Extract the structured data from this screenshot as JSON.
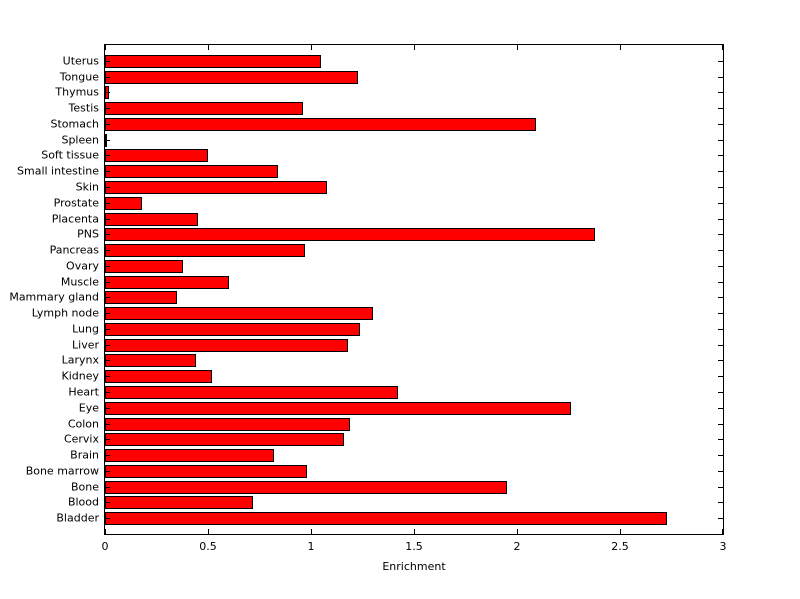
{
  "chart_data": {
    "type": "bar",
    "orientation": "horizontal",
    "title": "",
    "xlabel": "Enrichment",
    "ylabel": "",
    "xlim": [
      0,
      3
    ],
    "xticks": [
      0,
      0.5,
      1,
      1.5,
      2,
      2.5,
      3
    ],
    "xtick_labels": [
      "0",
      "0.5",
      "1",
      "1.5",
      "2",
      "2.5",
      "3"
    ],
    "grid": false,
    "legend": null,
    "bar_fill": "#ff0000",
    "bar_edge": "#000000",
    "axis_color": "#000000",
    "background": "#ffffff",
    "categories": [
      "Uterus",
      "Tongue",
      "Thymus",
      "Testis",
      "Stomach",
      "Spleen",
      "Soft tissue",
      "Small intestine",
      "Skin",
      "Prostate",
      "Placenta",
      "PNS",
      "Pancreas",
      "Ovary",
      "Muscle",
      "Mammary gland",
      "Lymph node",
      "Lung",
      "Liver",
      "Larynx",
      "Kidney",
      "Heart",
      "Eye",
      "Colon",
      "Cervix",
      "Brain",
      "Bone marrow",
      "Bone",
      "Blood",
      "Bladder"
    ],
    "values": [
      1.05,
      1.23,
      0.02,
      0.96,
      2.09,
      0.01,
      0.5,
      0.84,
      1.08,
      0.18,
      0.45,
      2.38,
      0.97,
      0.38,
      0.6,
      0.35,
      1.3,
      1.24,
      1.18,
      0.44,
      0.52,
      1.42,
      2.26,
      1.19,
      1.16,
      0.82,
      0.98,
      1.95,
      0.72,
      2.73
    ]
  }
}
